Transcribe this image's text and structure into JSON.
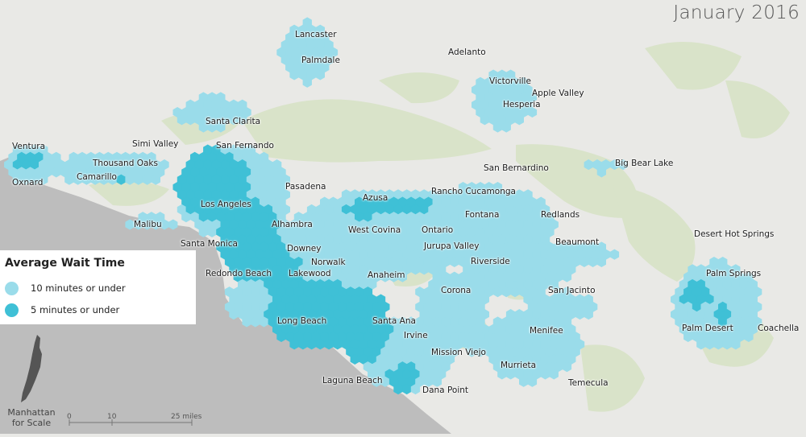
{
  "map": {
    "title": "January 2016",
    "legend": {
      "title": "Average Wait Time",
      "items": [
        {
          "label": "10 minutes or under",
          "color": "#9adcea"
        },
        {
          "label": "5 minutes or under",
          "color": "#3fc0d6"
        }
      ]
    },
    "scale_reference": {
      "label": "Manhattan for Scale",
      "label_line1": "Manhattan",
      "label_line2": "for Scale",
      "ticks": [
        "0",
        "10",
        "25 miles"
      ]
    },
    "colors": {
      "background": "#e9e9e6",
      "terrain": "#d9e3c9",
      "ocean": "#bdbdbd",
      "hex_light": "#9adcea",
      "hex_dark": "#3fc0d6"
    },
    "cities": [
      "Lancaster",
      "Palmdale",
      "Adelanto",
      "Victorville",
      "Apple Valley",
      "Hesperia",
      "Santa Clarita",
      "San Fernando",
      "Simi Valley",
      "Ventura",
      "Thousand Oaks",
      "Camarillo",
      "Oxnard",
      "San Bernardino",
      "Big Bear Lake",
      "Rancho Cucamonga",
      "Pasadena",
      "Azusa",
      "Los Angeles",
      "Alhambra",
      "Malibu",
      "Fontana",
      "Redlands",
      "West Covina",
      "Ontario",
      "Santa Monica",
      "Downey",
      "Jurupa Valley",
      "Beaumont",
      "Desert Hot Springs",
      "Norwalk",
      "Riverside",
      "Redondo Beach",
      "Lakewood",
      "Anaheim",
      "Palm Springs",
      "Corona",
      "San Jacinto",
      "Long Beach",
      "Santa Ana",
      "Palm Desert",
      "Coachella",
      "Irvine",
      "Menifee",
      "Mission Viejo",
      "Murrieta",
      "Laguna Beach",
      "Temecula",
      "Dana Point"
    ]
  }
}
